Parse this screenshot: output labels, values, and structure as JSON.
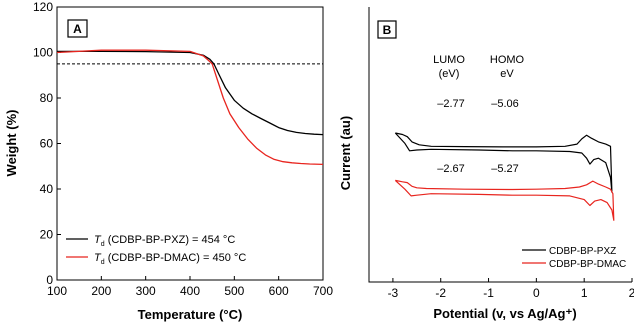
{
  "chart_data": [
    {
      "panel_label": "A",
      "type": "line",
      "xlabel": "Temperature (°C)",
      "ylabel": "Weight (%)",
      "xlim": [
        100,
        700
      ],
      "ylim": [
        0,
        120
      ],
      "xticks": [
        100,
        200,
        300,
        400,
        500,
        600,
        700
      ],
      "yticks": [
        0,
        20,
        40,
        60,
        80,
        100,
        120
      ],
      "reference_line": {
        "y": 95,
        "style": "dashed"
      },
      "legend_position": "bottom-left",
      "legend": [
        {
          "prefix": "T",
          "subscript": "d",
          "text": " (CDBP-BP-PXZ) = 454 °C",
          "color": "#000000"
        },
        {
          "prefix": "T",
          "subscript": "d",
          "text": " (CDBP-BP-DMAC) = 450 °C",
          "color": "#e8251f"
        }
      ],
      "series": [
        {
          "color": "#000000",
          "x": [
            100,
            200,
            300,
            400,
            430,
            445,
            454,
            465,
            480,
            500,
            520,
            540,
            560,
            580,
            600,
            620,
            640,
            660,
            680,
            700
          ],
          "y": [
            100.5,
            100.5,
            100.4,
            100,
            98.8,
            97,
            95,
            90.5,
            84.5,
            79,
            75.5,
            73,
            71,
            69,
            67,
            65.7,
            64.9,
            64.4,
            64.1,
            63.9
          ]
        },
        {
          "color": "#e8251f",
          "x": [
            100,
            200,
            300,
            400,
            430,
            442,
            450,
            460,
            475,
            490,
            510,
            530,
            550,
            570,
            590,
            610,
            630,
            650,
            670,
            700
          ],
          "y": [
            100,
            101,
            101,
            100.5,
            98.5,
            96.5,
            95,
            89,
            80,
            73,
            67,
            62,
            58,
            55,
            53,
            52,
            51.5,
            51.2,
            51,
            50.8
          ]
        }
      ]
    },
    {
      "panel_label": "B",
      "type": "line",
      "xlabel": "Potential (v, vs Ag/Ag⁺)",
      "ylabel": "Current (au)",
      "xlim": [
        -3.5,
        2
      ],
      "xticks": [
        -3,
        -2,
        -1,
        0,
        1,
        2
      ],
      "legend_position": "bottom-right",
      "legend": [
        {
          "name": "CDBP-BP-PXZ",
          "color": "#000000"
        },
        {
          "name": "CDBP-BP-DMAC",
          "color": "#e8251f"
        }
      ],
      "headers": {
        "lumo_1": "LUMO",
        "lumo_2": "(eV)",
        "homo_1": "HOMO",
        "homo_2": "eV"
      },
      "values": {
        "CDBP-BP-PXZ": {
          "lumo": "–2.77",
          "homo": "–5.06"
        },
        "CDBP-BP-DMAC": {
          "lumo": "–2.67",
          "homo": "–5.27"
        }
      },
      "series": [
        {
          "name": "CDBP-BP-PXZ",
          "color": "#000000",
          "x": [
            -2.95,
            -2.8,
            -2.7,
            -2.6,
            -2.45,
            -2.2,
            -1.5,
            -0.7,
            0,
            0.6,
            0.85,
            0.95,
            1.05,
            1.15,
            1.3,
            1.45,
            1.55,
            1.58,
            1.55,
            1.45,
            1.3,
            1.2,
            1.12,
            1.05,
            0.95,
            0.7,
            0,
            -0.5,
            -1.2,
            -2.2,
            -2.5,
            -2.65,
            -2.75,
            -2.95
          ],
          "y": [
            100,
            99,
            97.5,
            94,
            92,
            91,
            90.8,
            90.6,
            90.6,
            91,
            92.5,
            96,
            98.5,
            96.5,
            94,
            92.5,
            91,
            60,
            70,
            80,
            83,
            82,
            79,
            83,
            86.5,
            87.5,
            88,
            88,
            88.5,
            89,
            88.5,
            88,
            93,
            100
          ]
        },
        {
          "name": "CDBP-BP-DMAC",
          "color": "#e8251f",
          "x": [
            -2.95,
            -2.8,
            -2.7,
            -2.6,
            -2.5,
            -2.3,
            -1.5,
            -0.5,
            0,
            0.6,
            0.9,
            1.05,
            1.18,
            1.3,
            1.45,
            1.55,
            1.6,
            1.62,
            1.58,
            1.48,
            1.35,
            1.22,
            1.12,
            1.0,
            0.7,
            0,
            -0.5,
            -1.2,
            -2.2,
            -2.5,
            -2.62,
            -2.75,
            -2.95
          ],
          "y": [
            68,
            67,
            66.5,
            64,
            63,
            62.5,
            62,
            61.8,
            62,
            62.5,
            63.5,
            65,
            67.5,
            65.5,
            63.5,
            62,
            59,
            41,
            48,
            53,
            55,
            54,
            51,
            55,
            57.5,
            58,
            58,
            58.5,
            59,
            58,
            57.5,
            62,
            68
          ]
        }
      ]
    }
  ]
}
